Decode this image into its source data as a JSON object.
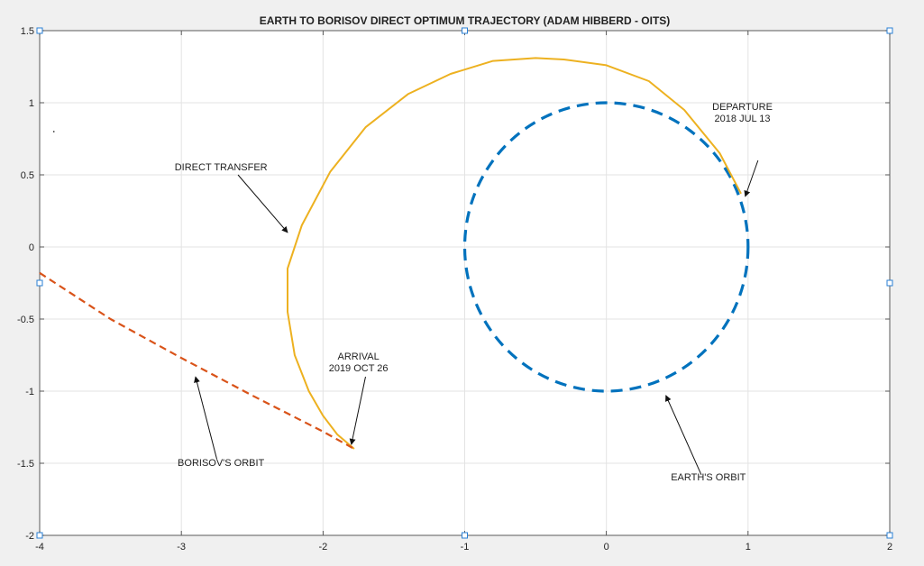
{
  "chart_data": {
    "type": "line",
    "title": "EARTH TO BORISOV DIRECT OPTIMUM TRAJECTORY (ADAM HIBBERD - OITS)",
    "xlabel": "",
    "ylabel": "",
    "xlim": [
      -4,
      2
    ],
    "ylim": [
      -2,
      1.5
    ],
    "x_ticks": [
      -4,
      -3,
      -2,
      -1,
      0,
      1,
      2
    ],
    "x_tick_labels": [
      "-4",
      "-3",
      "-2",
      "-1",
      "0",
      "1",
      "2"
    ],
    "y_ticks": [
      -2,
      -1.5,
      -1,
      -0.5,
      0,
      0.5,
      1,
      1.5
    ],
    "y_tick_labels": [
      "-2",
      "-1.5",
      "-1",
      "-0.5",
      "0",
      "0.5",
      "1",
      "1.5"
    ],
    "grid": true,
    "legend": "none",
    "series": [
      {
        "color": "#0072bd",
        "style": "dashed",
        "x": [
          1.0,
          0.966,
          0.866,
          0.707,
          0.5,
          0.259,
          0.0,
          -0.259,
          -0.5,
          -0.707,
          -0.866,
          -0.966,
          -1.0,
          -0.966,
          -0.866,
          -0.707,
          -0.5,
          -0.259,
          0.0,
          0.259,
          0.5,
          0.707,
          0.866,
          0.966,
          1.0
        ],
        "y": [
          0.0,
          0.259,
          0.5,
          0.707,
          0.866,
          0.966,
          1.0,
          0.966,
          0.866,
          0.707,
          0.5,
          0.259,
          0.0,
          -0.259,
          -0.5,
          -0.707,
          -0.866,
          -0.966,
          -1.0,
          -0.966,
          -0.866,
          -0.707,
          -0.5,
          -0.259,
          0.0
        ]
      },
      {
        "color": "#edb120",
        "style": "solid",
        "x": [
          0.95,
          0.8,
          0.55,
          0.3,
          0.0,
          -0.3,
          -0.5,
          -0.8,
          -1.1,
          -1.4,
          -1.7,
          -1.95,
          -2.15,
          -2.25,
          -2.25,
          -2.2,
          -2.1,
          -2.0,
          -1.9,
          -1.78
        ],
        "y": [
          0.37,
          0.65,
          0.95,
          1.15,
          1.26,
          1.3,
          1.31,
          1.29,
          1.2,
          1.06,
          0.83,
          0.52,
          0.15,
          -0.15,
          -0.45,
          -0.75,
          -1.0,
          -1.17,
          -1.3,
          -1.4
        ]
      },
      {
        "color": "#d95319",
        "style": "dashed",
        "x": [
          -4.0,
          -3.5,
          -3.0,
          -2.5,
          -2.0,
          -1.78
        ],
        "y": [
          -0.18,
          -0.5,
          -0.77,
          -1.03,
          -1.28,
          -1.4
        ]
      }
    ],
    "annotations": [
      {
        "text": [
          "DEPARTURE",
          "2018 JUL 13"
        ],
        "text_at": [
          0.96,
          0.95
        ],
        "arrow_from": [
          1.07,
          0.6
        ],
        "arrow_to": [
          0.98,
          0.35
        ]
      },
      {
        "text": [
          "DIRECT TRANSFER"
        ],
        "text_at": [
          -2.72,
          0.53
        ],
        "arrow_from": [
          -2.6,
          0.5
        ],
        "arrow_to": [
          -2.25,
          0.1
        ]
      },
      {
        "text": [
          "ARRIVAL",
          "2019 OCT 26"
        ],
        "text_at": [
          -1.75,
          -0.78
        ],
        "arrow_from": [
          -1.7,
          -0.9
        ],
        "arrow_to": [
          -1.8,
          -1.37
        ]
      },
      {
        "text": [
          "BORISOV'S ORBIT"
        ],
        "text_at": [
          -2.72,
          -1.52
        ],
        "arrow_from": [
          -2.75,
          -1.47
        ],
        "arrow_to": [
          -2.9,
          -0.9
        ]
      },
      {
        "text": [
          "EARTH'S ORBIT"
        ],
        "text_at": [
          0.72,
          -1.62
        ],
        "arrow_from": [
          0.67,
          -1.58
        ],
        "arrow_to": [
          0.42,
          -1.03
        ]
      }
    ],
    "stray_marks": [
      {
        "x": -3.9,
        "y": 0.8
      }
    ]
  }
}
